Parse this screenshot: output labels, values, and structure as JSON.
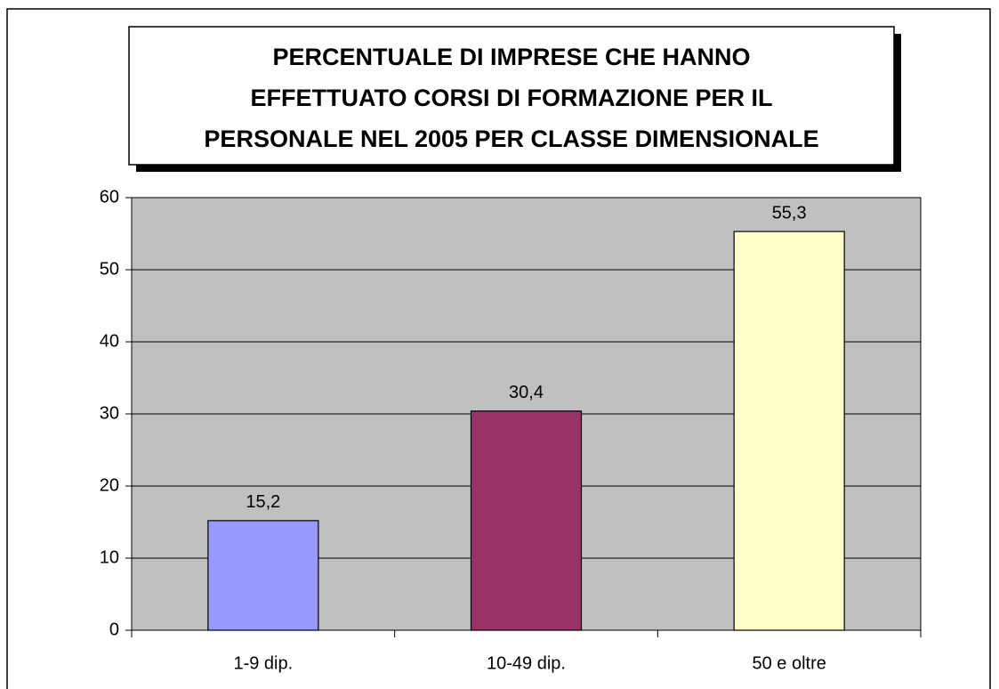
{
  "chart_data": {
    "type": "bar",
    "title": [
      "PERCENTUALE DI IMPRESE CHE HANNO",
      "EFFETTUATO CORSI DI FORMAZIONE PER IL",
      "PERSONALE NEL 2005 PER CLASSE DIMENSIONALE"
    ],
    "categories": [
      "1-9 dip.",
      "10-49 dip.",
      "50 e oltre"
    ],
    "values": [
      15.2,
      30.4,
      55.3
    ],
    "value_labels": [
      "15,2",
      "30,4",
      "55,3"
    ],
    "colors": [
      "#9999ff",
      "#993366",
      "#ffffcc"
    ],
    "ylim": [
      0,
      60
    ],
    "yticks": [
      0,
      10,
      20,
      30,
      40,
      50,
      60
    ],
    "grid": true
  }
}
